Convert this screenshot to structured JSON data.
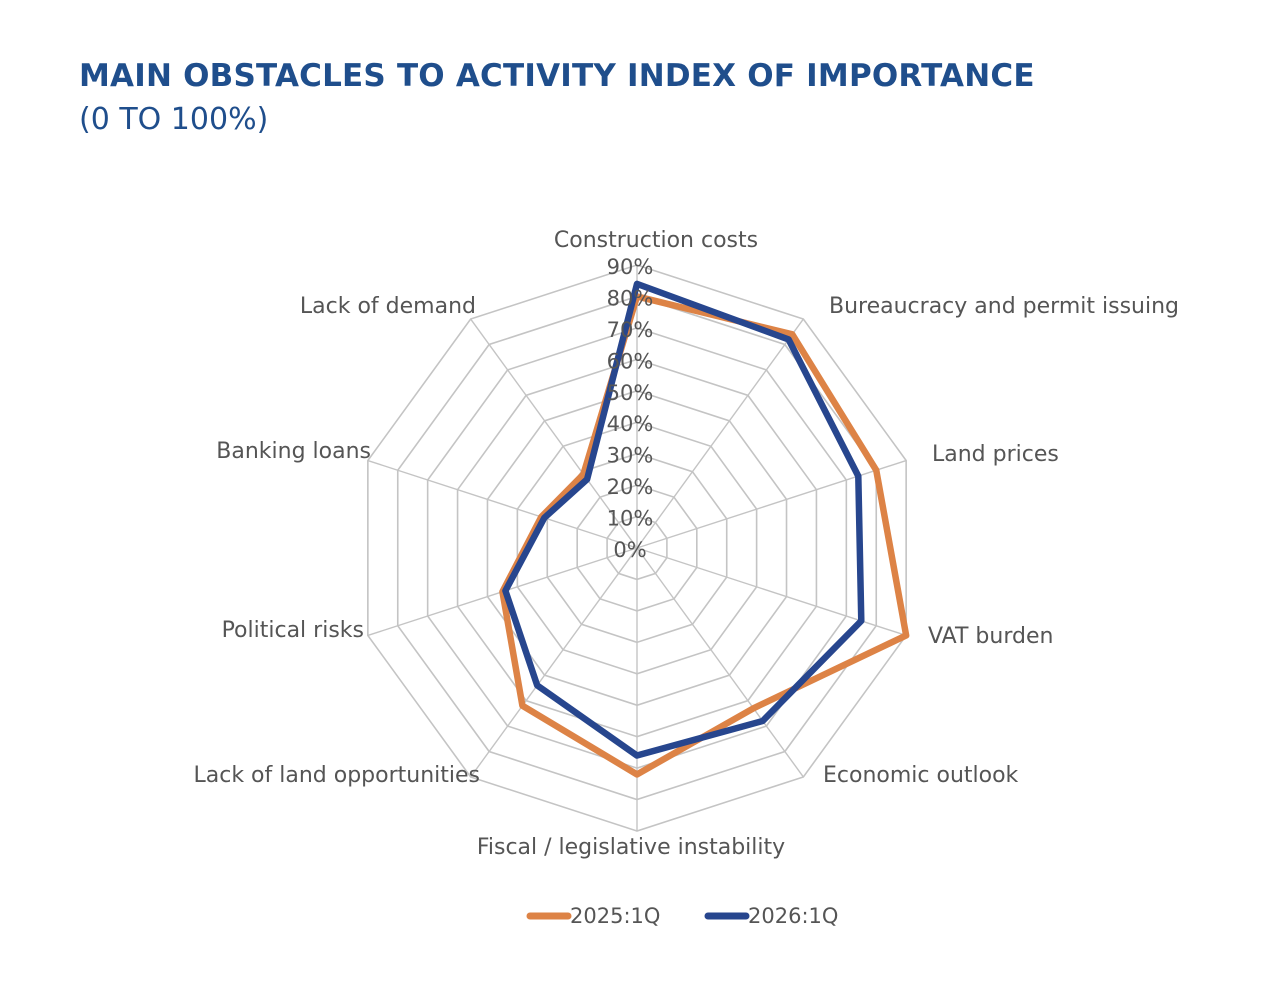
{
  "chart_data": {
    "type": "radar",
    "title": "MAIN OBSTACLES TO ACTIVITY INDEX OF IMPORTANCE",
    "subtitle": "(0 TO 100%)",
    "categories": [
      "Construction costs",
      "Bureaucracy and permit issuing",
      "Land prices",
      "VAT burden",
      "Economic outlook",
      "Fiscal / legislative instability",
      "Lack of land opportunities",
      "Political risks",
      "Banking loans",
      "Lack of demand"
    ],
    "ticks": [
      "0%",
      "10%",
      "20%",
      "30%",
      "40%",
      "50%",
      "60%",
      "70%",
      "80%",
      "90%"
    ],
    "rlim": [
      0,
      90
    ],
    "grid": true,
    "series": [
      {
        "name": "2025:1Q",
        "color": "#dd8346",
        "values": [
          80,
          84,
          80,
          90,
          63,
          72,
          62,
          45,
          32,
          29
        ]
      },
      {
        "name": "2026:1Q",
        "color": "#27468e",
        "values": [
          84,
          82,
          74,
          75,
          68,
          66,
          54,
          44,
          31,
          27
        ]
      }
    ],
    "legend": "bottom"
  },
  "colors": {
    "title": "#1f4e8c",
    "grid": "#c4c4c4",
    "label": "#555555"
  }
}
